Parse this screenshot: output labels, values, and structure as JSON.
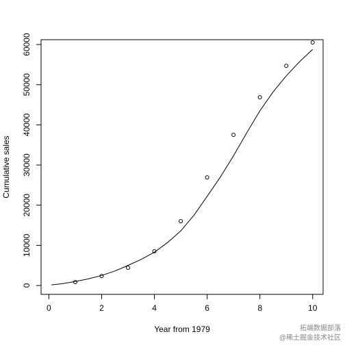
{
  "chart_data": {
    "type": "scatter",
    "x_label": "Year from 1979",
    "y_label": "Cumulative sales",
    "xlim": [
      -0.296,
      10.396
    ],
    "ylim": [
      -2200,
      61200
    ],
    "xticks": [
      0,
      2,
      4,
      6,
      8,
      10
    ],
    "yticks": [
      0,
      10000,
      20000,
      30000,
      40000,
      50000,
      60000
    ],
    "series": [
      {
        "mode": "points",
        "color": "#000000",
        "x": [
          1,
          2,
          3,
          4,
          5,
          6,
          7,
          8,
          9,
          10
        ],
        "values": [
          850,
          2390,
          4430,
          8520,
          16020,
          26930,
          37500,
          46870,
          54710,
          60510
        ]
      },
      {
        "mode": "line",
        "color": "#000000",
        "x": [
          0.1,
          0.5,
          1,
          1.5,
          2,
          2.5,
          3,
          3.5,
          4,
          4.5,
          5,
          5.5,
          6,
          6.5,
          7,
          7.5,
          8,
          8.5,
          9,
          9.5,
          10
        ],
        "values": [
          170,
          450,
          1000,
          1650,
          2500,
          3600,
          5000,
          6500,
          8300,
          10700,
          13600,
          17500,
          22200,
          27000,
          32300,
          38000,
          43500,
          48200,
          52200,
          55700,
          58800
        ]
      }
    ],
    "watermark": [
      "拓端数据部落",
      "@稀土掘金技术社区"
    ]
  }
}
